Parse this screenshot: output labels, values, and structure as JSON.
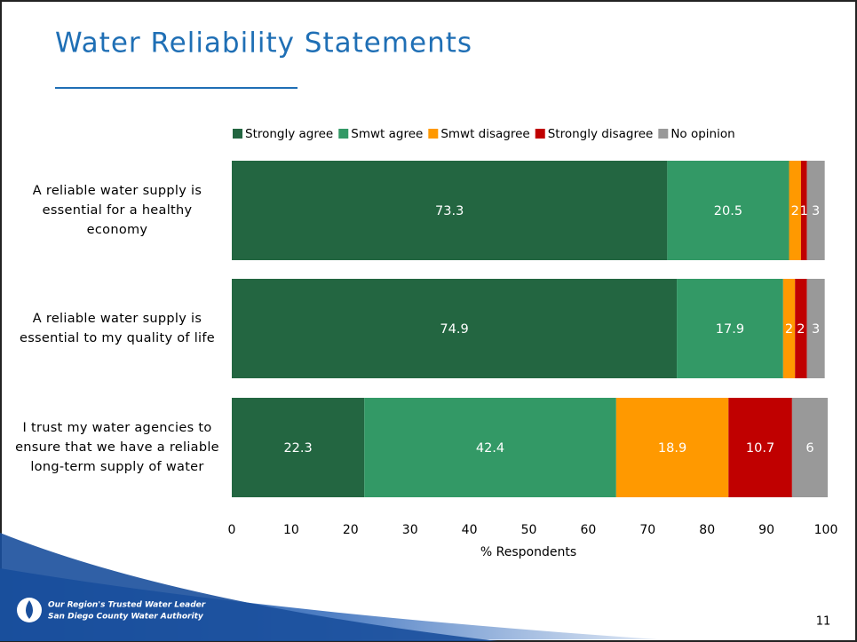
{
  "slide": {
    "title": "Water Reliability Statements",
    "footer_line1": "Our Region's Trusted Water Leader",
    "footer_line2": "San Diego County Water Authority",
    "page_number": "11"
  },
  "chart_data": {
    "type": "stacked_bar_horizontal",
    "categories": [
      "A reliable water supply is essential for a healthy economy",
      "A reliable water supply is essential to my quality of life",
      "I trust my water agencies to ensure that we have a reliable long-term supply of water"
    ],
    "series": [
      {
        "name": "Strongly agree",
        "color": "#236641",
        "values": [
          73.3,
          74.9,
          22.3
        ]
      },
      {
        "name": "Smwt agree",
        "color": "#339966",
        "values": [
          20.5,
          17.9,
          42.4
        ]
      },
      {
        "name": "Smwt disagree",
        "color": "#ff9900",
        "values": [
          2,
          2,
          18.9
        ]
      },
      {
        "name": "Strongly disagree",
        "color": "#c00000",
        "values": [
          1,
          2,
          10.7
        ]
      },
      {
        "name": "No opinion",
        "color": "#999999",
        "values": [
          3,
          3,
          6
        ]
      }
    ],
    "xlabel": "% Respondents",
    "xlim": [
      0,
      100
    ],
    "xticks": [
      0,
      10,
      20,
      30,
      40,
      50,
      60,
      70,
      80,
      90,
      100
    ],
    "legend": "top"
  }
}
